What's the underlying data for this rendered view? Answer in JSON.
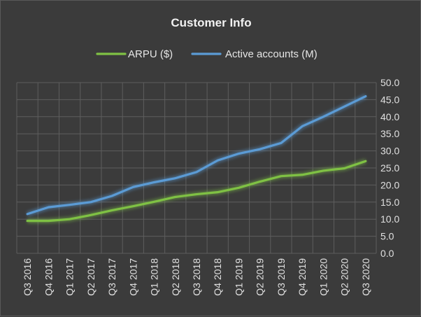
{
  "chart_data": {
    "type": "line",
    "title": "Customer Info",
    "xlabel": "",
    "ylabel": "",
    "categories": [
      "Q3 2016",
      "Q4 2016",
      "Q1 2017",
      "Q2 2017",
      "Q3 2017",
      "Q4 2017",
      "Q1 2018",
      "Q2 2018",
      "Q3 2018",
      "Q4 2018",
      "Q1 2019",
      "Q2 2019",
      "Q3 2019",
      "Q4 2019",
      "Q1 2020",
      "Q2 2020",
      "Q3 2020"
    ],
    "series": [
      {
        "name": "ARPU ($)",
        "color": "#7fc144",
        "values": [
          9.5,
          9.5,
          10.0,
          11.2,
          12.6,
          13.8,
          15.1,
          16.5,
          17.3,
          17.9,
          19.2,
          21.0,
          22.6,
          23.0,
          24.2,
          24.9,
          27.0
        ]
      },
      {
        "name": "Active accounts (M)",
        "color": "#5b9bd5",
        "values": [
          11.5,
          13.5,
          14.2,
          15.0,
          16.8,
          19.4,
          20.8,
          22.0,
          23.8,
          27.2,
          29.2,
          30.5,
          32.3,
          37.2,
          40.0,
          43.0,
          46.0
        ]
      }
    ],
    "ylim": [
      0,
      50
    ],
    "yticks": [
      "0.0",
      "5.0",
      "10.0",
      "15.0",
      "20.0",
      "25.0",
      "30.0",
      "35.0",
      "40.0",
      "45.0",
      "50.0"
    ],
    "grid": true,
    "legend_position": "top"
  }
}
